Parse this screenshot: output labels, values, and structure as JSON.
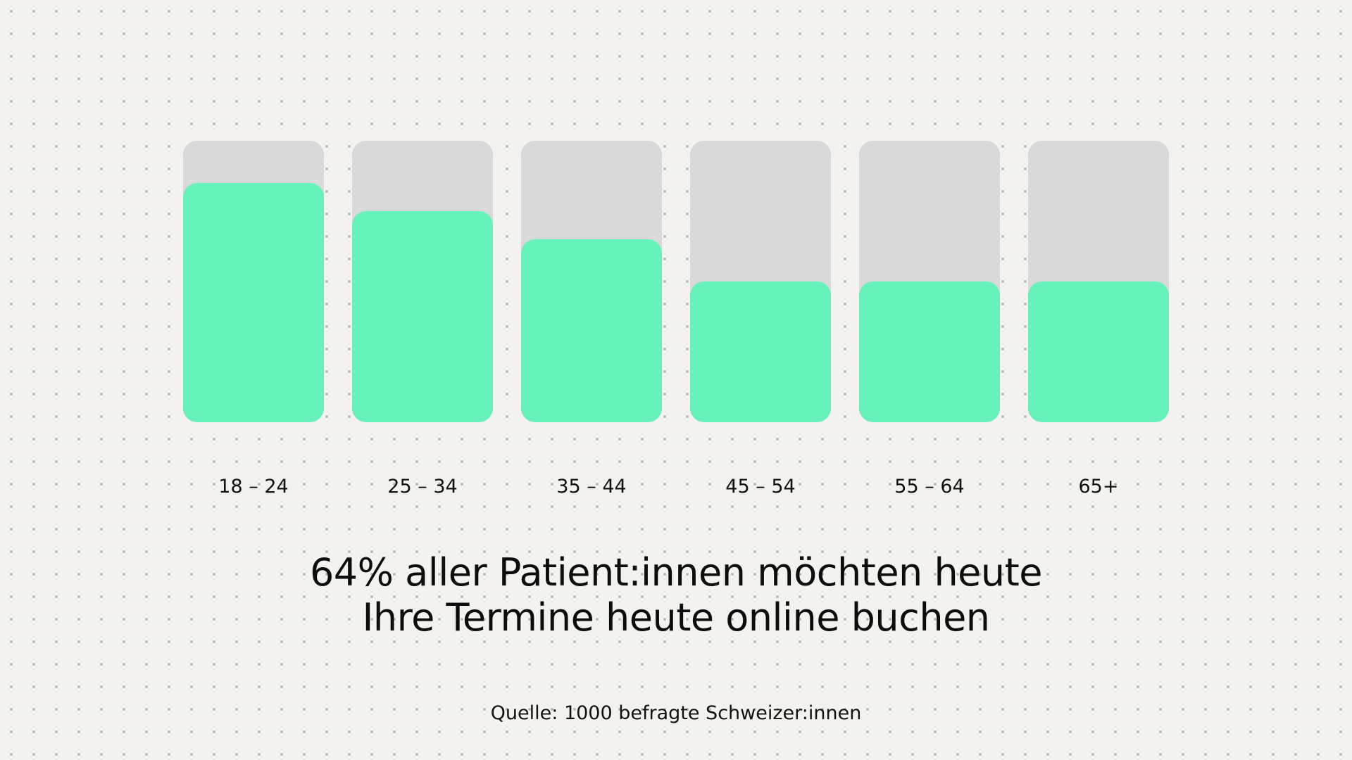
{
  "chart_data": {
    "type": "bar",
    "categories": [
      "18 – 24",
      "25 – 34",
      "35 – 44",
      "45 – 54",
      "55 – 64",
      "65+"
    ],
    "values": [
      85,
      75,
      65,
      50,
      50,
      50
    ],
    "ylim": [
      0,
      100
    ],
    "grid": false,
    "colors": {
      "value": "#66f2b9",
      "remainder": "#d9d9d9",
      "background": "#f3f2ee",
      "dots": "#b4b4ae"
    }
  },
  "headline": {
    "line1": "64% aller Patient:innen möchten heute",
    "line2": "Ihre Termine heute online buchen"
  },
  "source": "Quelle: 1000 befragte Schweizer:innen"
}
